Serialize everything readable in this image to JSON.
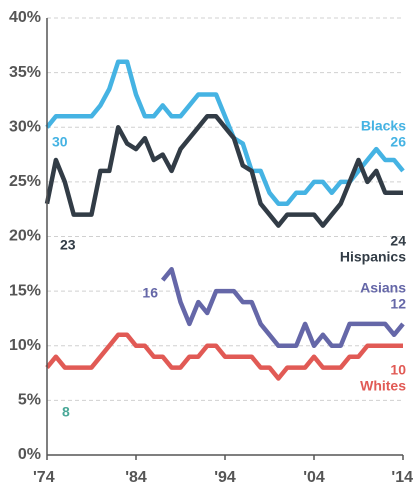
{
  "chart_data": {
    "type": "line",
    "x": [
      1974,
      1975,
      1976,
      1977,
      1978,
      1979,
      1980,
      1981,
      1982,
      1983,
      1984,
      1985,
      1986,
      1987,
      1988,
      1989,
      1990,
      1991,
      1992,
      1993,
      1994,
      1995,
      1996,
      1997,
      1998,
      1999,
      2000,
      2001,
      2002,
      2003,
      2004,
      2005,
      2006,
      2007,
      2008,
      2009,
      2010,
      2011,
      2012,
      2013,
      2014
    ],
    "series": [
      {
        "name": "Blacks",
        "color": "#45b3e3",
        "values": [
          30,
          31,
          31,
          31,
          31,
          31,
          32,
          33.5,
          36,
          36,
          33,
          31,
          31,
          32,
          31,
          31,
          32,
          33,
          33,
          33,
          31,
          29,
          28.5,
          26,
          26,
          24,
          23,
          23,
          24,
          24,
          25,
          25,
          24,
          25,
          25,
          26,
          27,
          28,
          27,
          27,
          26
        ]
      },
      {
        "name": "Hispanics",
        "color": "#323c46",
        "values": [
          23,
          27,
          25,
          22,
          22,
          22,
          26,
          26,
          30,
          28.5,
          28,
          29,
          27,
          27.5,
          26,
          28,
          29,
          30,
          31,
          31,
          30,
          29,
          26.5,
          26,
          23,
          22,
          21,
          22,
          22,
          22,
          22,
          21,
          22,
          23,
          25,
          27,
          25,
          26,
          24,
          24,
          24
        ]
      },
      {
        "name": "Asians",
        "color": "#6567a8",
        "values": [
          null,
          null,
          null,
          null,
          null,
          null,
          null,
          null,
          null,
          null,
          null,
          null,
          null,
          16,
          17,
          14,
          12,
          14,
          13,
          15,
          15,
          15,
          14,
          14,
          12,
          11,
          10,
          10,
          10,
          12,
          10,
          11,
          10,
          10,
          12,
          12,
          12,
          12,
          12,
          11,
          12
        ]
      },
      {
        "name": "Whites",
        "color": "#e15a55",
        "values": [
          8,
          9,
          8,
          8,
          8,
          8,
          9,
          10,
          11,
          11,
          10,
          10,
          9,
          9,
          8,
          8,
          9,
          9,
          10,
          10,
          9,
          9,
          9,
          9,
          8,
          8,
          7,
          8,
          8,
          8,
          9,
          8,
          8,
          8,
          9,
          9,
          10,
          10,
          10,
          10,
          10
        ]
      }
    ],
    "xlim": [
      1974,
      2014
    ],
    "xticks": [
      {
        "value": 1974,
        "label": "'74"
      },
      {
        "value": 1984,
        "label": "'84"
      },
      {
        "value": 1994,
        "label": "'94"
      },
      {
        "value": 2004,
        "label": "'04"
      },
      {
        "value": 2014,
        "label": "'14"
      }
    ],
    "ylim": [
      0,
      40
    ],
    "yticks": [
      {
        "value": 0,
        "label": "0%"
      },
      {
        "value": 5,
        "label": "5%"
      },
      {
        "value": 10,
        "label": "10%"
      },
      {
        "value": 15,
        "label": "15%"
      },
      {
        "value": 20,
        "label": "20%"
      },
      {
        "value": 25,
        "label": "25%"
      },
      {
        "value": 30,
        "label": "30%"
      },
      {
        "value": 35,
        "label": "35%"
      },
      {
        "value": 40,
        "label": "40%"
      }
    ],
    "grid": true
  }
}
